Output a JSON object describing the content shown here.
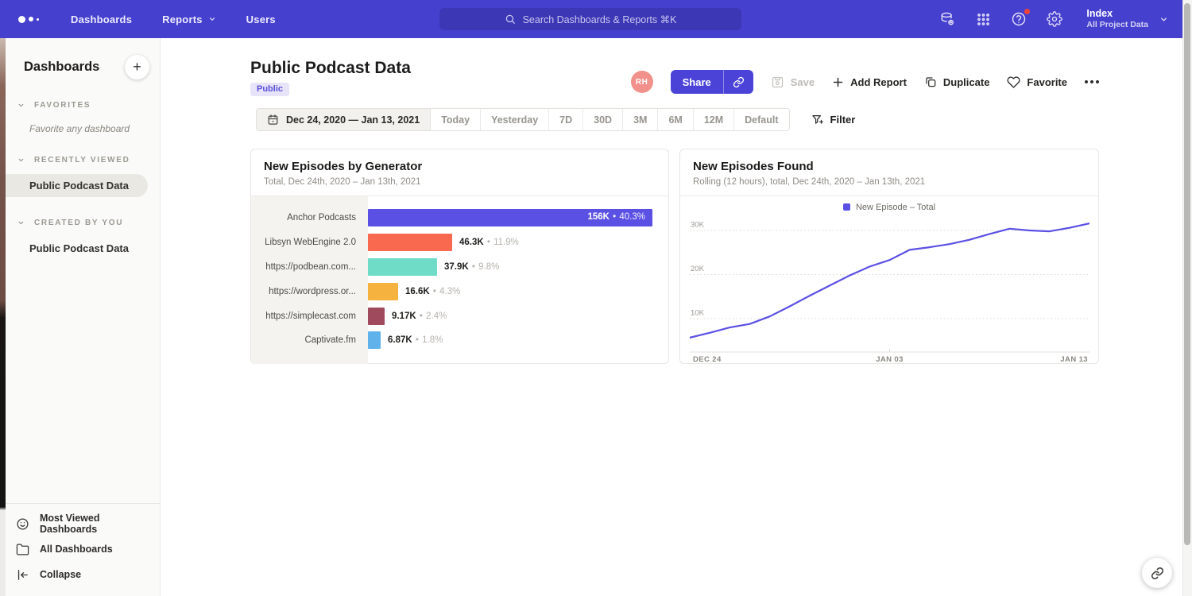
{
  "nav": {
    "menu": [
      {
        "label": "Dashboards"
      },
      {
        "label": "Reports"
      },
      {
        "label": "Users"
      }
    ],
    "search_placeholder": "Search Dashboards & Reports ⌘K",
    "workspace_name": "Index",
    "workspace_subtitle": "All Project Data"
  },
  "sidebar": {
    "title": "Dashboards",
    "sections": [
      {
        "label": "FAVORITES",
        "empty_text": "Favorite any dashboard"
      },
      {
        "label": "RECENTLY VIEWED",
        "items": [
          {
            "label": "Public Podcast Data",
            "selected": true
          }
        ]
      },
      {
        "label": "CREATED BY YOU",
        "items": [
          {
            "label": "Public Podcast Data",
            "selected": false
          }
        ]
      }
    ],
    "footer_items": [
      {
        "label": "Most Viewed Dashboards",
        "icon": "smiley-icon"
      },
      {
        "label": "All Dashboards",
        "icon": "folder-icon"
      },
      {
        "label": "Collapse",
        "icon": "collapse-icon"
      }
    ]
  },
  "header": {
    "title": "Public Podcast Data",
    "badge": "Public",
    "avatar_initials": "RH",
    "actions": {
      "share": "Share",
      "save": "Save",
      "add_report": "Add Report",
      "duplicate": "Duplicate",
      "favorite": "Favorite"
    }
  },
  "datebar": {
    "range": "Dec 24, 2020 — Jan 13, 2021",
    "presets": [
      "Today",
      "Yesterday",
      "7D",
      "30D",
      "3M",
      "6M",
      "12M",
      "Default"
    ],
    "filter": "Filter"
  },
  "chart_data": [
    {
      "type": "bar",
      "orientation": "horizontal",
      "title": "New Episodes by Generator",
      "subtitle": "Total, Dec 24th, 2020 – Jan 13th, 2021",
      "categories": [
        "Anchor Podcasts",
        "Libsyn WebEngine 2.0",
        "https://podbean.com...",
        "https://wordpress.or...",
        "https://simplecast.com",
        "Captivate.fm"
      ],
      "values": [
        156000,
        46300,
        37900,
        16600,
        9170,
        6870
      ],
      "value_labels": [
        "156K",
        "46.3K",
        "37.9K",
        "16.6K",
        "9.17K",
        "6.87K"
      ],
      "percent_labels": [
        "40.3%",
        "11.9%",
        "9.8%",
        "4.3%",
        "2.4%",
        "1.8%"
      ],
      "bar_colors": [
        "#5b50e4",
        "#f9694f",
        "#6edcc6",
        "#f5b23e",
        "#a04a5e",
        "#5fb2ea"
      ],
      "xlim": [
        0,
        156000
      ]
    },
    {
      "type": "line",
      "title": "New Episodes Found",
      "subtitle": "Rolling (12 hours), total, Dec 24th, 2020 – Jan 13th, 2021",
      "legend": [
        {
          "label": "New Episode – Total",
          "color": "#5b50e4"
        }
      ],
      "x_tick_labels": [
        "DEC 24",
        "JAN 03",
        "JAN 13"
      ],
      "y_tick_labels": [
        "10K",
        "20K",
        "30K"
      ],
      "y_tick_values": [
        10000,
        20000,
        30000
      ],
      "x_days": [
        0,
        1,
        2,
        3,
        4,
        5,
        6,
        7,
        8,
        9,
        10,
        11,
        12,
        13,
        14,
        15,
        16,
        17,
        18,
        19,
        20
      ],
      "values": [
        5700,
        6800,
        8000,
        8800,
        10500,
        12800,
        15200,
        17500,
        19800,
        21800,
        23300,
        25600,
        26200,
        26900,
        27900,
        29200,
        30400,
        30000,
        29800,
        30600,
        31600
      ],
      "grid": "dotted-horizontal",
      "legend_position": "top-center"
    }
  ],
  "colors": {
    "nav": "#4640ce",
    "accent": "#4b43d8"
  }
}
